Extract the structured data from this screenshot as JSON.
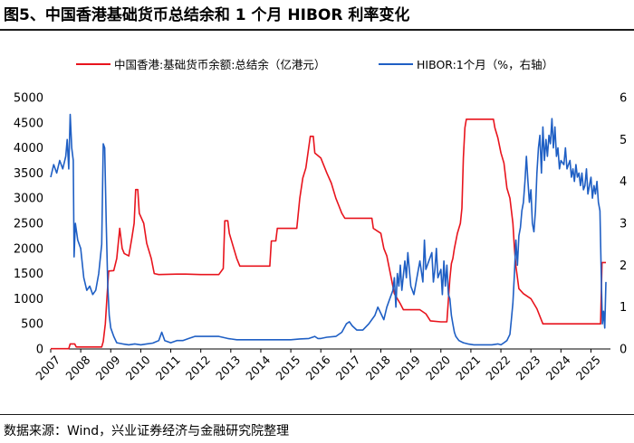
{
  "title": "图5、中国香港基础货币总结余和 1 个月 HIBOR 利率变化",
  "source": "数据来源：Wind，兴业证券经济与金融研究院整理",
  "colors": {
    "balance": "#e8141d",
    "hibor": "#1f5fc4",
    "axis": "#000000"
  },
  "chart_data": {
    "type": "line",
    "title": "图5、中国香港基础货币总结余和 1 个月 HIBOR 利率变化",
    "xlabel": "",
    "ylabel_left": "",
    "ylabel_right": "",
    "grid": false,
    "legend_position": "top",
    "x_ticks": [
      "2007",
      "2008",
      "2009",
      "2010",
      "2011",
      "2012",
      "2013",
      "2014",
      "2015",
      "2016",
      "2017",
      "2018",
      "2019",
      "2020",
      "2021",
      "2022",
      "2023",
      "2024",
      "2025"
    ],
    "y_left": {
      "lim": [
        0,
        5000
      ],
      "ticks": [
        "0",
        "500",
        "1000",
        "1500",
        "2000",
        "2500",
        "3000",
        "3500",
        "4000",
        "4500",
        "5000"
      ]
    },
    "y_right": {
      "lim": [
        0,
        6
      ],
      "ticks": [
        "0",
        "1",
        "2",
        "3",
        "4",
        "5",
        "6"
      ]
    },
    "series": [
      {
        "name": "中国香港:基础货币余额:总结余（亿港元）",
        "axis": "left",
        "color": "#e8141d",
        "points": [
          [
            2007.0,
            5
          ],
          [
            2007.6,
            5
          ],
          [
            2007.65,
            100
          ],
          [
            2007.8,
            100
          ],
          [
            2007.85,
            40
          ],
          [
            2008.7,
            40
          ],
          [
            2008.75,
            150
          ],
          [
            2008.82,
            500
          ],
          [
            2008.87,
            1000
          ],
          [
            2008.93,
            1550
          ],
          [
            2009.1,
            1560
          ],
          [
            2009.2,
            1800
          ],
          [
            2009.3,
            2400
          ],
          [
            2009.38,
            2000
          ],
          [
            2009.45,
            1900
          ],
          [
            2009.6,
            1850
          ],
          [
            2009.7,
            2200
          ],
          [
            2009.78,
            2500
          ],
          [
            2009.83,
            3170
          ],
          [
            2009.9,
            3170
          ],
          [
            2009.95,
            2700
          ],
          [
            2010.1,
            2500
          ],
          [
            2010.2,
            2100
          ],
          [
            2010.35,
            1800
          ],
          [
            2010.45,
            1500
          ],
          [
            2010.6,
            1480
          ],
          [
            2011.2,
            1490
          ],
          [
            2011.5,
            1490
          ],
          [
            2012.0,
            1480
          ],
          [
            2012.6,
            1480
          ],
          [
            2012.75,
            1600
          ],
          [
            2012.8,
            2550
          ],
          [
            2012.9,
            2550
          ],
          [
            2012.95,
            2300
          ],
          [
            2013.1,
            2000
          ],
          [
            2013.2,
            1800
          ],
          [
            2013.3,
            1650
          ],
          [
            2013.5,
            1650
          ],
          [
            2014.3,
            1650
          ],
          [
            2014.35,
            2150
          ],
          [
            2014.5,
            2150
          ],
          [
            2014.55,
            2400
          ],
          [
            2015.2,
            2400
          ],
          [
            2015.3,
            3000
          ],
          [
            2015.4,
            3400
          ],
          [
            2015.5,
            3600
          ],
          [
            2015.65,
            4230
          ],
          [
            2015.75,
            4230
          ],
          [
            2015.8,
            3900
          ],
          [
            2016.0,
            3800
          ],
          [
            2016.2,
            3500
          ],
          [
            2016.35,
            3300
          ],
          [
            2016.5,
            3000
          ],
          [
            2016.6,
            2850
          ],
          [
            2016.7,
            2700
          ],
          [
            2016.8,
            2600
          ],
          [
            2017.2,
            2600
          ],
          [
            2017.7,
            2600
          ],
          [
            2017.75,
            2400
          ],
          [
            2018.0,
            2300
          ],
          [
            2018.1,
            2000
          ],
          [
            2018.2,
            1850
          ],
          [
            2018.35,
            1400
          ],
          [
            2018.45,
            1100
          ],
          [
            2018.55,
            1000
          ],
          [
            2018.65,
            900
          ],
          [
            2018.75,
            780
          ],
          [
            2019.0,
            780
          ],
          [
            2019.3,
            780
          ],
          [
            2019.5,
            700
          ],
          [
            2019.65,
            560
          ],
          [
            2020.0,
            540
          ],
          [
            2020.2,
            540
          ],
          [
            2020.3,
            1400
          ],
          [
            2020.35,
            1700
          ],
          [
            2020.4,
            1800
          ],
          [
            2020.45,
            2000
          ],
          [
            2020.55,
            2300
          ],
          [
            2020.65,
            2500
          ],
          [
            2020.7,
            2800
          ],
          [
            2020.75,
            3800
          ],
          [
            2020.8,
            4400
          ],
          [
            2020.85,
            4570
          ],
          [
            2021.2,
            4570
          ],
          [
            2021.6,
            4570
          ],
          [
            2021.75,
            4570
          ],
          [
            2021.8,
            4400
          ],
          [
            2021.9,
            4200
          ],
          [
            2022.0,
            3900
          ],
          [
            2022.1,
            3700
          ],
          [
            2022.2,
            3200
          ],
          [
            2022.3,
            3000
          ],
          [
            2022.4,
            2500
          ],
          [
            2022.45,
            2000
          ],
          [
            2022.5,
            1650
          ],
          [
            2022.6,
            1200
          ],
          [
            2022.75,
            1100
          ],
          [
            2023.0,
            1000
          ],
          [
            2023.2,
            800
          ],
          [
            2023.4,
            500
          ],
          [
            2023.5,
            500
          ],
          [
            2024.0,
            500
          ],
          [
            2024.5,
            500
          ],
          [
            2025.2,
            500
          ],
          [
            2025.32,
            500
          ],
          [
            2025.37,
            1720
          ],
          [
            2025.5,
            1720
          ]
        ]
      },
      {
        "name": "HIBOR:1个月（%，右轴）",
        "axis": "right",
        "color": "#1f5fc4",
        "points": [
          [
            2007.0,
            4.1
          ],
          [
            2007.1,
            4.4
          ],
          [
            2007.2,
            4.2
          ],
          [
            2007.3,
            4.5
          ],
          [
            2007.4,
            4.3
          ],
          [
            2007.5,
            4.6
          ],
          [
            2007.55,
            5.0
          ],
          [
            2007.6,
            4.3
          ],
          [
            2007.65,
            5.6
          ],
          [
            2007.7,
            4.8
          ],
          [
            2007.75,
            4.5
          ],
          [
            2007.78,
            2.2
          ],
          [
            2007.82,
            3.0
          ],
          [
            2007.9,
            2.6
          ],
          [
            2008.0,
            2.4
          ],
          [
            2008.1,
            1.7
          ],
          [
            2008.2,
            1.4
          ],
          [
            2008.3,
            1.5
          ],
          [
            2008.4,
            1.3
          ],
          [
            2008.5,
            1.4
          ],
          [
            2008.6,
            1.8
          ],
          [
            2008.7,
            2.5
          ],
          [
            2008.75,
            4.9
          ],
          [
            2008.8,
            4.8
          ],
          [
            2008.85,
            3.0
          ],
          [
            2008.9,
            1.5
          ],
          [
            2008.95,
            0.8
          ],
          [
            2009.0,
            0.5
          ],
          [
            2009.1,
            0.3
          ],
          [
            2009.2,
            0.15
          ],
          [
            2009.4,
            0.12
          ],
          [
            2009.6,
            0.1
          ],
          [
            2009.8,
            0.12
          ],
          [
            2010.0,
            0.1
          ],
          [
            2010.2,
            0.12
          ],
          [
            2010.4,
            0.14
          ],
          [
            2010.6,
            0.2
          ],
          [
            2010.7,
            0.4
          ],
          [
            2010.8,
            0.2
          ],
          [
            2011.0,
            0.15
          ],
          [
            2011.2,
            0.2
          ],
          [
            2011.4,
            0.2
          ],
          [
            2011.6,
            0.25
          ],
          [
            2011.8,
            0.3
          ],
          [
            2012.0,
            0.3
          ],
          [
            2012.3,
            0.3
          ],
          [
            2012.6,
            0.3
          ],
          [
            2012.9,
            0.25
          ],
          [
            2013.2,
            0.22
          ],
          [
            2013.5,
            0.22
          ],
          [
            2013.8,
            0.22
          ],
          [
            2014.1,
            0.22
          ],
          [
            2014.4,
            0.22
          ],
          [
            2014.7,
            0.22
          ],
          [
            2015.0,
            0.22
          ],
          [
            2015.3,
            0.24
          ],
          [
            2015.6,
            0.25
          ],
          [
            2015.8,
            0.3
          ],
          [
            2015.9,
            0.25
          ],
          [
            2016.0,
            0.25
          ],
          [
            2016.2,
            0.28
          ],
          [
            2016.5,
            0.3
          ],
          [
            2016.7,
            0.4
          ],
          [
            2016.85,
            0.6
          ],
          [
            2016.95,
            0.65
          ],
          [
            2017.05,
            0.55
          ],
          [
            2017.2,
            0.45
          ],
          [
            2017.4,
            0.45
          ],
          [
            2017.6,
            0.6
          ],
          [
            2017.8,
            0.8
          ],
          [
            2017.9,
            1.0
          ],
          [
            2018.0,
            0.85
          ],
          [
            2018.1,
            0.7
          ],
          [
            2018.2,
            1.0
          ],
          [
            2018.3,
            1.2
          ],
          [
            2018.4,
            1.4
          ],
          [
            2018.45,
            1.7
          ],
          [
            2018.5,
            1.0
          ],
          [
            2018.55,
            1.8
          ],
          [
            2018.6,
            1.5
          ],
          [
            2018.65,
            2.0
          ],
          [
            2018.7,
            1.4
          ],
          [
            2018.8,
            2.1
          ],
          [
            2018.85,
            1.7
          ],
          [
            2018.9,
            2.3
          ],
          [
            2019.0,
            1.5
          ],
          [
            2019.1,
            1.3
          ],
          [
            2019.2,
            1.7
          ],
          [
            2019.3,
            2.1
          ],
          [
            2019.4,
            1.6
          ],
          [
            2019.45,
            2.6
          ],
          [
            2019.5,
            1.9
          ],
          [
            2019.6,
            2.1
          ],
          [
            2019.7,
            2.3
          ],
          [
            2019.75,
            1.6
          ],
          [
            2019.8,
            1.9
          ],
          [
            2019.85,
            2.4
          ],
          [
            2019.9,
            1.7
          ],
          [
            2020.0,
            1.9
          ],
          [
            2020.05,
            1.3
          ],
          [
            2020.1,
            2.1
          ],
          [
            2020.15,
            1.5
          ],
          [
            2020.2,
            2.0
          ],
          [
            2020.25,
            1.3
          ],
          [
            2020.3,
            1.2
          ],
          [
            2020.35,
            0.8
          ],
          [
            2020.4,
            0.6
          ],
          [
            2020.45,
            0.4
          ],
          [
            2020.5,
            0.3
          ],
          [
            2020.6,
            0.2
          ],
          [
            2020.75,
            0.15
          ],
          [
            2020.9,
            0.12
          ],
          [
            2021.1,
            0.1
          ],
          [
            2021.3,
            0.1
          ],
          [
            2021.5,
            0.1
          ],
          [
            2021.7,
            0.1
          ],
          [
            2021.9,
            0.12
          ],
          [
            2022.0,
            0.1
          ],
          [
            2022.1,
            0.15
          ],
          [
            2022.2,
            0.2
          ],
          [
            2022.3,
            0.35
          ],
          [
            2022.35,
            0.7
          ],
          [
            2022.4,
            1.1
          ],
          [
            2022.45,
            1.8
          ],
          [
            2022.5,
            2.6
          ],
          [
            2022.55,
            2.0
          ],
          [
            2022.6,
            2.7
          ],
          [
            2022.65,
            2.9
          ],
          [
            2022.7,
            3.3
          ],
          [
            2022.75,
            3.5
          ],
          [
            2022.8,
            4.0
          ],
          [
            2022.85,
            4.6
          ],
          [
            2022.9,
            4.0
          ],
          [
            2022.95,
            3.5
          ],
          [
            2023.0,
            3.8
          ],
          [
            2023.05,
            3.0
          ],
          [
            2023.1,
            2.8
          ],
          [
            2023.15,
            3.3
          ],
          [
            2023.2,
            4.2
          ],
          [
            2023.25,
            4.8
          ],
          [
            2023.3,
            5.1
          ],
          [
            2023.35,
            4.2
          ],
          [
            2023.4,
            5.3
          ],
          [
            2023.45,
            4.5
          ],
          [
            2023.5,
            5.0
          ],
          [
            2023.55,
            4.6
          ],
          [
            2023.6,
            5.1
          ],
          [
            2023.65,
            4.9
          ],
          [
            2023.7,
            5.5
          ],
          [
            2023.75,
            4.8
          ],
          [
            2023.8,
            5.3
          ],
          [
            2023.85,
            4.6
          ],
          [
            2023.9,
            4.8
          ],
          [
            2023.95,
            4.3
          ],
          [
            2024.0,
            4.5
          ],
          [
            2024.1,
            4.4
          ],
          [
            2024.15,
            4.8
          ],
          [
            2024.2,
            4.3
          ],
          [
            2024.3,
            4.5
          ],
          [
            2024.35,
            4.1
          ],
          [
            2024.4,
            4.3
          ],
          [
            2024.45,
            4.0
          ],
          [
            2024.5,
            4.4
          ],
          [
            2024.55,
            4.1
          ],
          [
            2024.6,
            4.2
          ],
          [
            2024.65,
            3.9
          ],
          [
            2024.7,
            4.2
          ],
          [
            2024.75,
            3.8
          ],
          [
            2024.8,
            3.9
          ],
          [
            2024.85,
            4.3
          ],
          [
            2024.9,
            3.7
          ],
          [
            2024.95,
            3.9
          ],
          [
            2025.0,
            4.1
          ],
          [
            2025.05,
            3.6
          ],
          [
            2025.1,
            3.9
          ],
          [
            2025.15,
            3.7
          ],
          [
            2025.2,
            4.0
          ],
          [
            2025.25,
            3.5
          ],
          [
            2025.3,
            3.3
          ],
          [
            2025.35,
            1.5
          ],
          [
            2025.38,
            0.6
          ],
          [
            2025.42,
            0.9
          ],
          [
            2025.46,
            0.5
          ],
          [
            2025.5,
            1.6
          ]
        ]
      }
    ]
  }
}
